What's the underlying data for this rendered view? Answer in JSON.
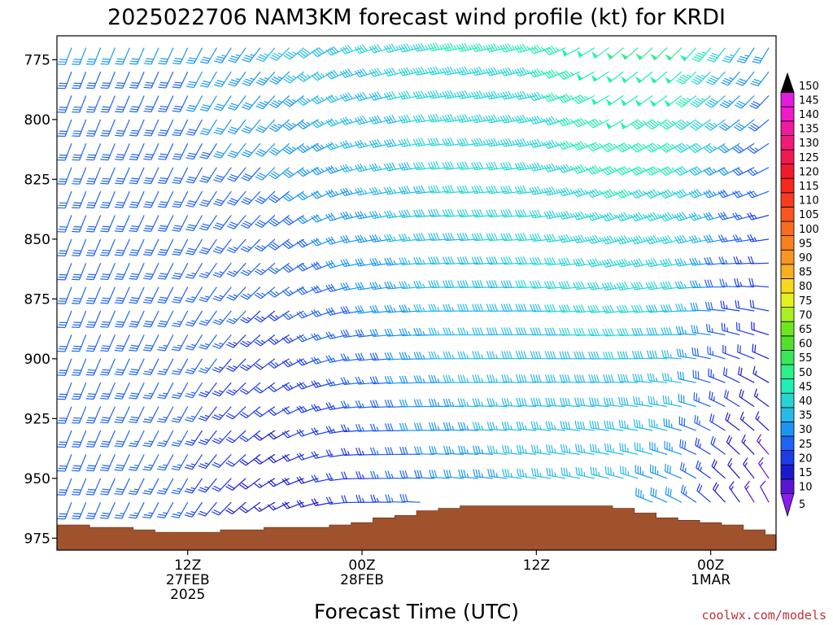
{
  "chart_data": {
    "type": "wind-barb-time-height",
    "title": "2025022706 NAM3KM forecast wind profile (kt) for KRDI",
    "xlabel": "Forecast Time (UTC)",
    "ylabel": "",
    "x_range_hours": [
      -3,
      46.5
    ],
    "y_range_hpa": [
      980,
      765
    ],
    "y_ticks": [
      775,
      800,
      825,
      850,
      875,
      900,
      925,
      950,
      975
    ],
    "y_tick_labels": [
      "775",
      "800",
      "825",
      "850",
      "875",
      "900",
      "925",
      "950",
      "975"
    ],
    "x_ticks": [
      {
        "hour": 6,
        "lines": [
          "12Z",
          "27FEB",
          "2025"
        ]
      },
      {
        "hour": 18,
        "lines": [
          "00Z",
          "28FEB"
        ]
      },
      {
        "hour": 30,
        "lines": [
          "12Z"
        ]
      },
      {
        "hour": 42,
        "lines": [
          "00Z",
          "1MAR"
        ]
      },
      {
        "hour": 54,
        "lines": [
          "12Z"
        ]
      }
    ],
    "colorbar": {
      "levels": [
        5,
        10,
        15,
        20,
        25,
        30,
        35,
        40,
        45,
        50,
        55,
        60,
        65,
        70,
        75,
        80,
        85,
        90,
        95,
        100,
        105,
        110,
        115,
        120,
        125,
        130,
        135,
        140,
        145,
        150
      ],
      "level_labels": [
        "5",
        "10",
        "15",
        "20",
        "25",
        "30",
        "35",
        "40",
        "45",
        "50",
        "55",
        "60",
        "65",
        "70",
        "75",
        "80",
        "85",
        "90",
        "95",
        "100",
        "105",
        "110",
        "115",
        "120",
        "125",
        "130",
        "135",
        "140",
        "145",
        "150"
      ],
      "colors": [
        "#8c1cf0",
        "#5a14d8",
        "#1a1ad0",
        "#1c3cec",
        "#1e64f4",
        "#1a96f2",
        "#26bae8",
        "#26d4d4",
        "#1ef0b4",
        "#2cf08c",
        "#38e858",
        "#52e02c",
        "#6ee81e",
        "#aaf01e",
        "#e6f01e",
        "#f8d81e",
        "#f8b01e",
        "#f8961e",
        "#f8801e",
        "#f86c1e",
        "#f8561e",
        "#f83c1e",
        "#f8281e",
        "#f01a2c",
        "#f01a50",
        "#f01a78",
        "#f01a9c",
        "#f01ac8",
        "#e41ae0",
        "#000000"
      ]
    },
    "terrain_color": "#a0522d",
    "terrain": {
      "hours": [
        -3,
        -1.5,
        0,
        1.5,
        3,
        4.5,
        6,
        7.5,
        9,
        10.5,
        12,
        13.5,
        15,
        16.5,
        18,
        19.5,
        21,
        22.5,
        24,
        25.5,
        27,
        28.5,
        30,
        31.5,
        33,
        34.5,
        36,
        37.5,
        39,
        40.5,
        42,
        43.5,
        45,
        46.5
      ],
      "surface_hpa": [
        969.5,
        969.5,
        970.5,
        970.5,
        971.5,
        972.5,
        972.5,
        972.5,
        971.5,
        971.5,
        970.5,
        970.5,
        970.5,
        969.5,
        968.5,
        966.5,
        965.5,
        963.5,
        962.5,
        961.5,
        961.5,
        961.5,
        961.5,
        961.5,
        961.5,
        961.5,
        962.5,
        964.5,
        966.5,
        967.5,
        968.5,
        969.5,
        971.5,
        973.5
      ]
    },
    "barb_pressure_levels_hpa": [
      770,
      780,
      790,
      800,
      810,
      820,
      830,
      840,
      850,
      860,
      870,
      880,
      890,
      900,
      910,
      920,
      930,
      940,
      950,
      960,
      970
    ],
    "barb_time_step_hours": 1,
    "speed_kt_by_hour": [
      [
        -3,
        30,
        30
      ],
      [
        6,
        30,
        25
      ],
      [
        12,
        35,
        15
      ],
      [
        18,
        40,
        20
      ],
      [
        24,
        45,
        30
      ],
      [
        30,
        45,
        35
      ],
      [
        36,
        50,
        35
      ],
      [
        40,
        50,
        30
      ],
      [
        42,
        45,
        20
      ],
      [
        44,
        35,
        15
      ],
      [
        46.5,
        30,
        10
      ]
    ],
    "direction_deg_by_hour": [
      [
        -3,
        200,
        200
      ],
      [
        6,
        205,
        210
      ],
      [
        12,
        220,
        240
      ],
      [
        18,
        250,
        270
      ],
      [
        24,
        260,
        275
      ],
      [
        30,
        255,
        280
      ],
      [
        36,
        230,
        290
      ],
      [
        40,
        225,
        300
      ],
      [
        44,
        215,
        330
      ],
      [
        46.5,
        210,
        340
      ]
    ]
  },
  "credit": "coolwx.com/models"
}
